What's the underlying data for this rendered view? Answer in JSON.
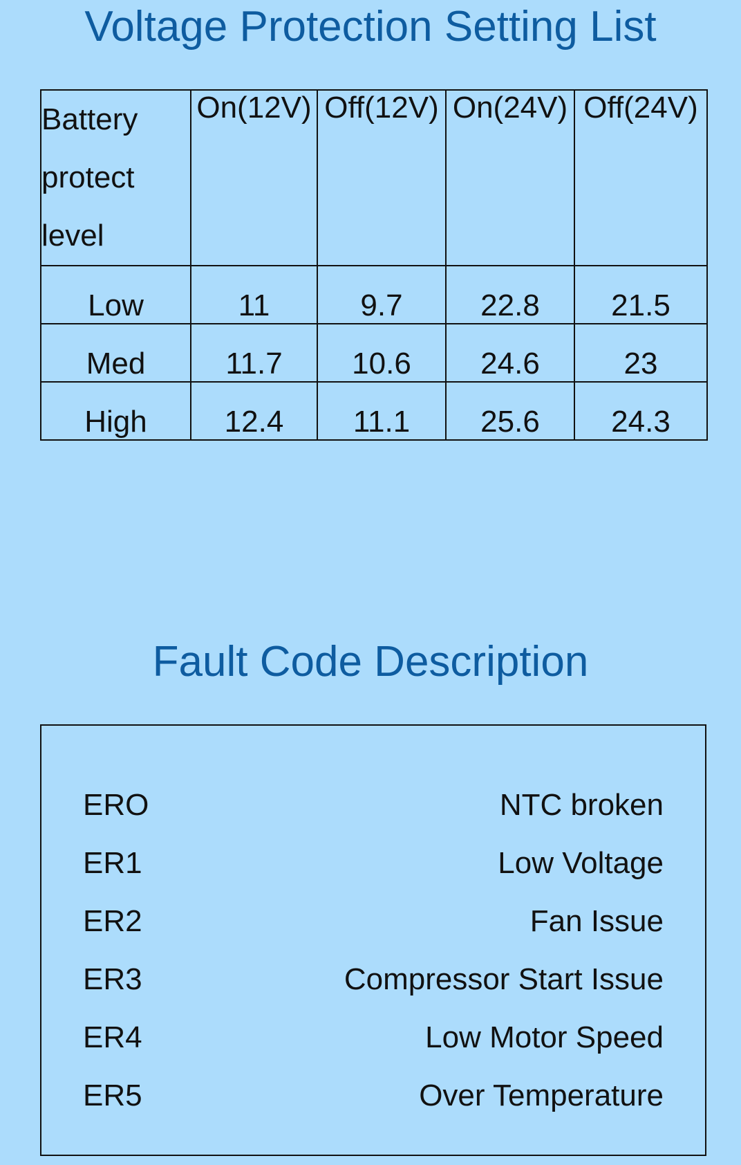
{
  "voltage_section": {
    "title": "Voltage Protection Setting List",
    "header_first": [
      "Battery",
      "protect",
      "level"
    ],
    "columns": [
      "On(12V)",
      "Off(12V)",
      "On(24V)",
      "Off(24V)"
    ],
    "rows": [
      {
        "level": "Low",
        "values": [
          "11",
          "9.7",
          "22.8",
          "21.5"
        ]
      },
      {
        "level": "Med",
        "values": [
          "11.7",
          "10.6",
          "24.6",
          "23"
        ]
      },
      {
        "level": "High",
        "values": [
          "12.4",
          "11.1",
          "25.6",
          "24.3"
        ]
      }
    ]
  },
  "fault_section": {
    "title": "Fault Code Description",
    "items": [
      {
        "code": "ERO",
        "description": "NTC broken"
      },
      {
        "code": "ER1",
        "description": "Low Voltage"
      },
      {
        "code": "ER2",
        "description": "Fan Issue"
      },
      {
        "code": "ER3",
        "description": "Compressor Start Issue"
      },
      {
        "code": "ER4",
        "description": "Low Motor Speed"
      },
      {
        "code": "ER5",
        "description": "Over Temperature"
      }
    ]
  },
  "colors": {
    "background": "#acdcfc",
    "title": "#0e5ca0",
    "text": "#111111"
  }
}
